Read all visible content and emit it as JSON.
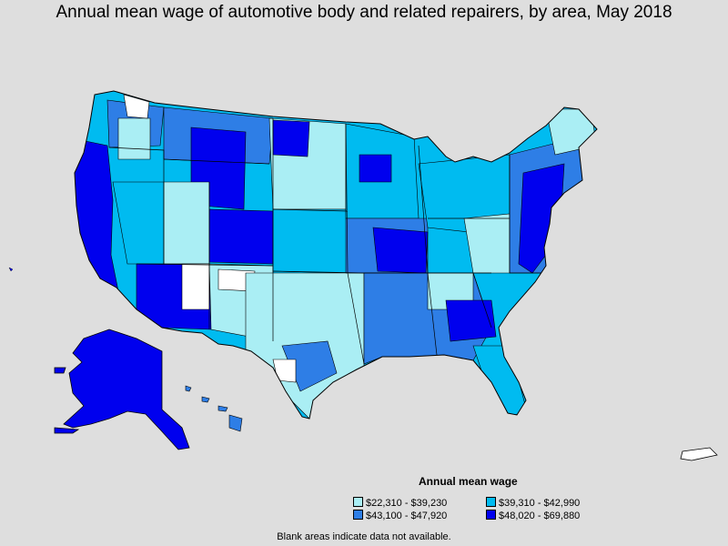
{
  "title": "Annual mean wage of automotive body and related repairers, by area, May 2018",
  "legend": {
    "title": "Annual mean wage",
    "items": [
      {
        "label": "$22,310 - $39,230",
        "color": "#aaeef4"
      },
      {
        "label": "$39,310 - $42,990",
        "color": "#00bbf0"
      },
      {
        "label": "$43,100 - $47,920",
        "color": "#2e7ee6"
      },
      {
        "label": "$48,020 - $69,880",
        "color": "#0000ee"
      }
    ]
  },
  "footnote": "Blank areas indicate data not available.",
  "colors": {
    "background": "#dedede",
    "border": "#000000",
    "blank": "#ffffff"
  }
}
